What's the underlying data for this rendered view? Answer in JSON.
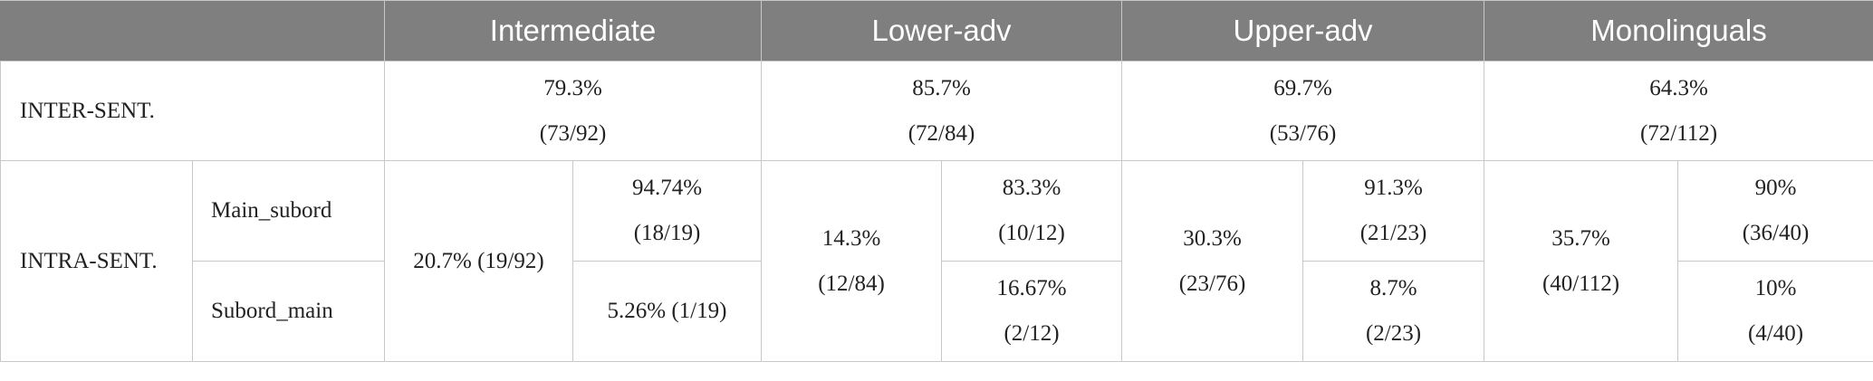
{
  "header": {
    "columns": [
      "Intermediate",
      "Lower-adv",
      "Upper-adv",
      "Monolinguals"
    ]
  },
  "rows": {
    "inter": {
      "label": "INTER-SENT.",
      "cells": [
        {
          "pct": "79.3%",
          "frac": "(73/92)"
        },
        {
          "pct": "85.7%",
          "frac": "(72/84)"
        },
        {
          "pct": "69.7%",
          "frac": "(53/76)"
        },
        {
          "pct": "64.3%",
          "frac": "(72/112)"
        }
      ]
    },
    "intra": {
      "label": "INTRA-SENT.",
      "sub_labels": [
        "Main_subord",
        "Subord_main"
      ],
      "groups": [
        {
          "total": "20.7% (19/92)",
          "main_subord": {
            "pct": "94.74%",
            "frac": "(18/19)"
          },
          "subord_main": {
            "text": "5.26% (1/19)"
          }
        },
        {
          "total_pct": "14.3%",
          "total_frac": "(12/84)",
          "main_subord": {
            "pct": "83.3%",
            "frac": "(10/12)"
          },
          "subord_main": {
            "pct": "16.67%",
            "frac": "(2/12)"
          }
        },
        {
          "total_pct": "30.3%",
          "total_frac": "(23/76)",
          "main_subord": {
            "pct": "91.3%",
            "frac": "(21/23)"
          },
          "subord_main": {
            "pct": "8.7%",
            "frac": "(2/23)"
          }
        },
        {
          "total_pct": "35.7%",
          "total_frac": "(40/112)",
          "main_subord": {
            "pct": "90%",
            "frac": "(36/40)"
          },
          "subord_main": {
            "pct": "10%",
            "frac": "(4/40)"
          }
        }
      ]
    }
  }
}
